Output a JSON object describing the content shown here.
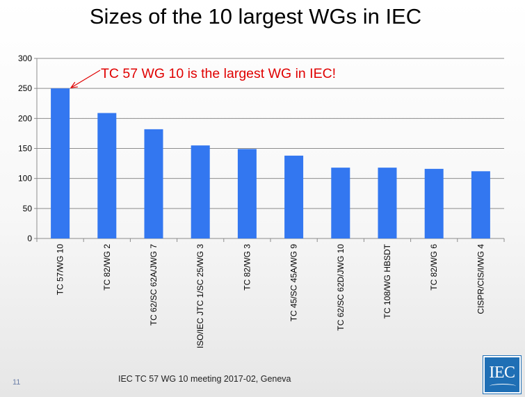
{
  "slide": {
    "title": "Sizes of the 10 largest WGs in IEC",
    "footer": "IEC TC 57 WG 10 meeting 2017-02, Geneva",
    "page_number": "11",
    "logo_text": "IEC"
  },
  "chart_data": {
    "type": "bar",
    "title": "",
    "xlabel": "",
    "ylabel": "",
    "ylim": [
      0,
      300
    ],
    "yticks": [
      0,
      50,
      100,
      150,
      200,
      250,
      300
    ],
    "grid": true,
    "bar_color": "#3377f0",
    "categories": [
      "TC 57/WG 10",
      "TC 82/WG 2",
      "TC 62/SC 62A/JWG 7",
      "ISO/IEC JTC 1/SC 25/WG 3",
      "TC 82/WG 3",
      "TC 45/SC 45A/WG 9",
      "TC 62/SC 62D/JWG 10",
      "TC 108/WG HBSDT",
      "TC 82/WG 6",
      "CISPR/CIS/I/WG 4"
    ],
    "values": [
      250,
      209,
      182,
      155,
      149,
      138,
      118,
      118,
      116,
      112
    ],
    "annotation": {
      "text": "TC 57 WG 10 is the largest WG in IEC!",
      "color": "#e00000",
      "target_category": "TC 57/WG 10"
    }
  }
}
